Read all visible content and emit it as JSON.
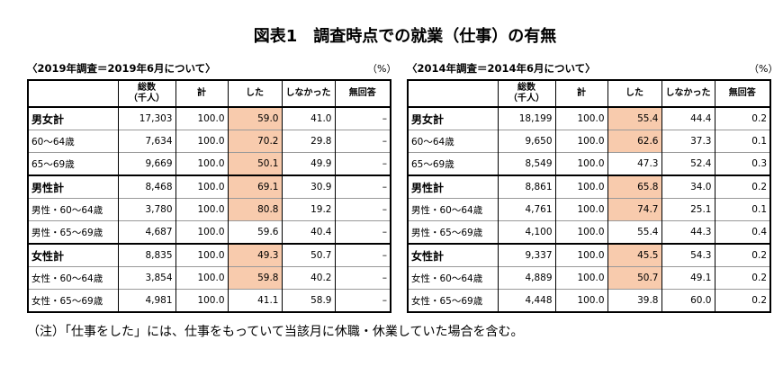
{
  "title": "図表1　調査時点での就業（仕事）の有無",
  "tables": [
    {
      "caption": "〈2019年調査＝2019年6月について〉",
      "unit": "（%）",
      "total_header": [
        "総数",
        "（千人）"
      ],
      "headers": [
        "計",
        "した",
        "しなかった",
        "無回答"
      ],
      "rows": [
        [
          "男女計",
          "17,303",
          "100.0",
          "59.0",
          "41.0",
          "–"
        ],
        [
          "60～64歳",
          "7,634",
          "100.0",
          "70.2",
          "29.8",
          "–"
        ],
        [
          "65～69歳",
          "9,669",
          "100.0",
          "50.1",
          "49.9",
          "–"
        ],
        [
          "男性計",
          "8,468",
          "100.0",
          "69.1",
          "30.9",
          "–"
        ],
        [
          "男性・60～64歳",
          "3,780",
          "100.0",
          "80.8",
          "19.2",
          "–"
        ],
        [
          "男性・65～69歳",
          "4,687",
          "100.0",
          "59.6",
          "40.4",
          "–"
        ],
        [
          "女性計",
          "8,835",
          "100.0",
          "49.3",
          "50.7",
          "–"
        ],
        [
          "女性・60～64歳",
          "3,854",
          "100.0",
          "59.8",
          "40.2",
          "–"
        ],
        [
          "女性・65～69歳",
          "4,981",
          "100.0",
          "41.1",
          "58.9",
          "–"
        ]
      ]
    },
    {
      "caption": "〈2014年調査＝2014年6月について〉",
      "unit": "（%）",
      "total_header": [
        "総数",
        "（千人）"
      ],
      "headers": [
        "計",
        "した",
        "しなかった",
        "無回答"
      ],
      "rows": [
        [
          "男女計",
          "18,199",
          "100.0",
          "55.4",
          "44.4",
          "0.2"
        ],
        [
          "60～64歳",
          "9,650",
          "100.0",
          "62.6",
          "37.3",
          "0.1"
        ],
        [
          "65～69歳",
          "8,549",
          "100.0",
          "47.3",
          "52.4",
          "0.3"
        ],
        [
          "男性計",
          "8,861",
          "100.0",
          "65.8",
          "34.0",
          "0.2"
        ],
        [
          "男性・60～64歳",
          "4,761",
          "100.0",
          "74.7",
          "25.1",
          "0.1"
        ],
        [
          "男性・65～69歳",
          "4,100",
          "100.0",
          "55.4",
          "44.3",
          "0.4"
        ],
        [
          "女性計",
          "9,337",
          "100.0",
          "45.5",
          "54.3",
          "0.2"
        ],
        [
          "女性・60～64歳",
          "4,889",
          "100.0",
          "50.7",
          "49.1",
          "0.2"
        ],
        [
          "女性・65～69歳",
          "4,448",
          "100.0",
          "39.8",
          "60.0",
          "0.2"
        ]
      ]
    }
  ],
  "note": "（注）「仕事をした」には、仕事をもっていて当該月に休職・休業していた場合を含む。"
}
